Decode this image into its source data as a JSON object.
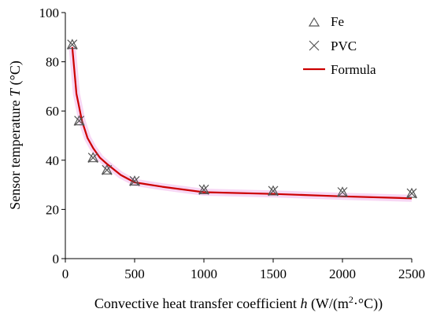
{
  "chart_data": {
    "type": "scatter",
    "xlabel_prefix": "Convective heat transfer coefficient ",
    "xlabel_var": "h",
    "xlabel_unit_a": " (W/(m",
    "xlabel_sup": "2",
    "xlabel_unit_b": "·°C))",
    "ylabel_prefix": "Sensor temperature ",
    "ylabel_var": "T",
    "ylabel_unit": " (°C)",
    "xlim": [
      0,
      2500
    ],
    "ylim": [
      0,
      100
    ],
    "xticks": [
      0,
      500,
      1000,
      1500,
      2000,
      2500
    ],
    "yticks": [
      0,
      20,
      40,
      60,
      80,
      100
    ],
    "grid": false,
    "legend_position": "top-right",
    "series": [
      {
        "name": "Fe",
        "marker": "triangle",
        "color": "#555555",
        "x": [
          50,
          100,
          200,
          300,
          500,
          1000,
          1500,
          2000,
          2500
        ],
        "y": [
          87,
          56,
          41,
          36,
          31.5,
          28,
          27.5,
          27,
          26.5
        ]
      },
      {
        "name": "PVC",
        "marker": "cross",
        "color": "#555555",
        "x": [
          50,
          100,
          200,
          300,
          500,
          1000,
          1500,
          2000,
          2500
        ],
        "y": [
          87,
          56,
          41,
          36,
          31.5,
          28,
          27.5,
          27,
          26.5
        ]
      },
      {
        "name": "Formula",
        "marker": "line",
        "color": "#cc0000",
        "x": [
          50,
          80,
          120,
          160,
          200,
          250,
          300,
          400,
          500,
          700,
          1000,
          1500,
          2000,
          2500
        ],
        "y": [
          86,
          67,
          56,
          49,
          45,
          41,
          38.5,
          34,
          31,
          29.2,
          27,
          26.3,
          25.3,
          24.5
        ]
      }
    ],
    "band_color": "#f4c6f0"
  }
}
